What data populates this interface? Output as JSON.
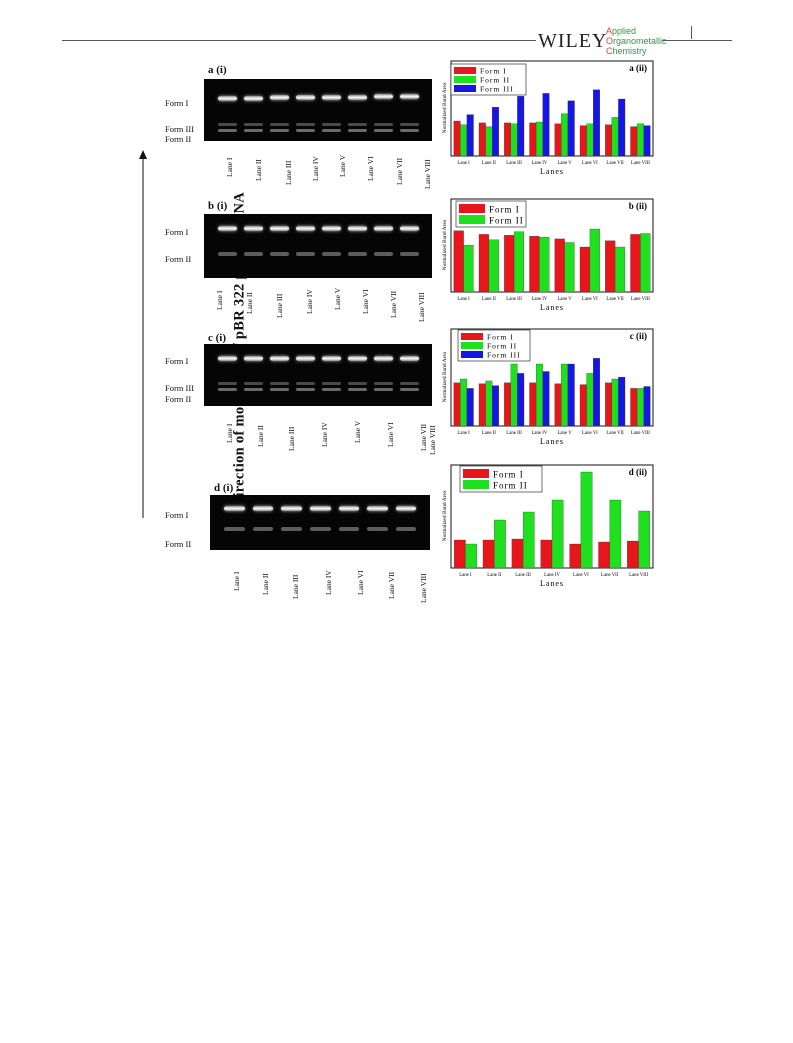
{
  "header": {
    "publisher": "WILEY",
    "journal_lines": [
      "Applied",
      "Organometallic",
      "Chemistry"
    ],
    "journal_initials": [
      "A",
      "O",
      "C"
    ]
  },
  "figure": {
    "side_axis_label": "direction of movement of pBR 322 plasmid DNA",
    "panels": [
      {
        "gel_tag": "a (i)",
        "forms": [
          "Form I",
          "Form III",
          "Form II"
        ],
        "lanes": [
          "Lane I",
          "Lane II",
          "Lane III",
          "Lane IV",
          "Lane V",
          "Lane VI",
          "Lane VII",
          "Lane VIII"
        ]
      },
      {
        "gel_tag": "b (i)",
        "forms": [
          "Form I",
          "Form II"
        ],
        "lanes": [
          "Lane I",
          "Lane II",
          "Lane III",
          "Lane IV",
          "Lane V",
          "Lane VI",
          "Lane VII",
          "Lane VIII"
        ]
      },
      {
        "gel_tag": "c (i)",
        "forms": [
          "Form I",
          "Form III",
          "Form II"
        ],
        "lanes": [
          "Lane I",
          "Lane II",
          "Lane III",
          "Lane IV",
          "Lane V",
          "Lane VI",
          "Lane VII",
          "Lane VIII"
        ]
      },
      {
        "gel_tag": "d (i)",
        "forms": [
          "Form I",
          "Form II"
        ],
        "lanes": [
          "Lane I",
          "Lane II",
          "Lane III",
          "Lane IV",
          "Lane VI",
          "Lane VII",
          "Lane VIII"
        ]
      }
    ]
  },
  "colors": {
    "form1": "#e8161a",
    "form2": "#1ee01e",
    "form3": "#1616e6"
  },
  "chart_data": [
    {
      "type": "bar",
      "tag": "a (ii)",
      "categories": [
        "Lane I",
        "Lane II",
        "Lane III",
        "Lane IV",
        "Lane V",
        "Lane VI",
        "Lane VII",
        "Lane VIII"
      ],
      "series": [
        {
          "name": "Form I",
          "values": [
            38,
            36,
            36,
            36,
            35,
            33,
            34,
            32
          ]
        },
        {
          "name": "Form II",
          "values": [
            34,
            32,
            35,
            37,
            46,
            35,
            42,
            35
          ]
        },
        {
          "name": "Form III",
          "values": [
            45,
            53,
            65,
            68,
            60,
            72,
            62,
            33
          ]
        }
      ],
      "xlabel": "Lanes",
      "ylabel": "Normalized Band Area",
      "ylim": [
        0,
        100
      ]
    },
    {
      "type": "bar",
      "tag": "b (ii)",
      "categories": [
        "Lane I",
        "Lane II",
        "Lane III",
        "Lane IV",
        "Lane V",
        "Lane VI",
        "Lane VII",
        "Lane VIII"
      ],
      "series": [
        {
          "name": "Form I",
          "values": [
            68,
            64,
            63,
            62,
            59,
            50,
            57,
            64
          ]
        },
        {
          "name": "Form II",
          "values": [
            52,
            58,
            67,
            61,
            55,
            70,
            50,
            65
          ]
        }
      ],
      "xlabel": "Lanes",
      "ylabel": "Normalized Band Area",
      "ylim": [
        0,
        100
      ]
    },
    {
      "type": "bar",
      "tag": "c (ii)",
      "categories": [
        "Lane I",
        "Lane II",
        "Lane III",
        "Lane IV",
        "Lane V",
        "Lane VI",
        "Lane VII",
        "Lane VIII"
      ],
      "series": [
        {
          "name": "Form I",
          "values": [
            46,
            45,
            46,
            46,
            45,
            44,
            46,
            40
          ]
        },
        {
          "name": "Form II",
          "values": [
            50,
            48,
            66,
            66,
            66,
            56,
            50,
            40
          ]
        },
        {
          "name": "Form III",
          "values": [
            40,
            43,
            56,
            58,
            66,
            72,
            52,
            42
          ]
        }
      ],
      "xlabel": "Lanes",
      "ylabel": "Normalized Band Area",
      "ylim": [
        0,
        100
      ]
    },
    {
      "type": "bar",
      "tag": "d (ii)",
      "categories": [
        "Lane I",
        "Lane II",
        "Lane III",
        "Lane IV",
        "Lane VI",
        "Lane VII",
        "Lane VIII"
      ],
      "series": [
        {
          "name": "Form I",
          "values": [
            28,
            28,
            29,
            28,
            24,
            26,
            27
          ]
        },
        {
          "name": "Form II",
          "values": [
            24,
            48,
            56,
            68,
            96,
            68,
            57
          ]
        }
      ],
      "xlabel": "Lanes",
      "ylabel": "Normalized Band Area",
      "ylim": [
        0,
        100
      ]
    }
  ]
}
